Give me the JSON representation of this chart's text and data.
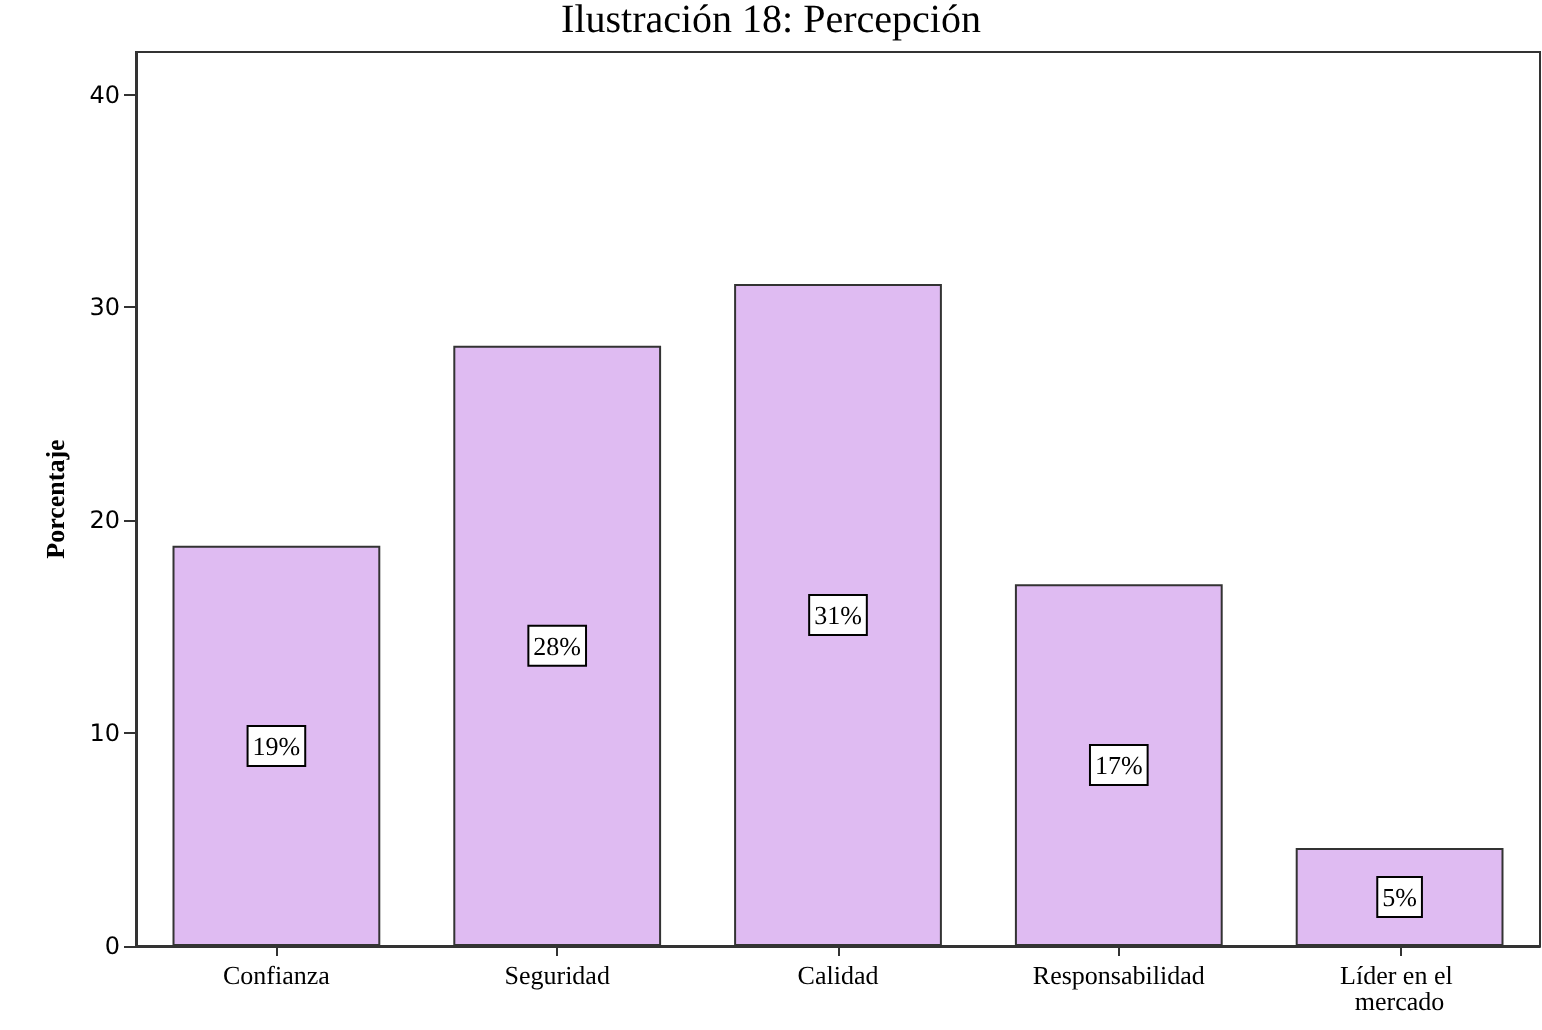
{
  "chart_data": {
    "type": "bar",
    "title": "Ilustración 18: Percepción",
    "ylabel": "Porcentaje",
    "categories": [
      "Confianza",
      "Seguridad",
      "Calidad",
      "Responsabilidad",
      "Líder en el mercado"
    ],
    "values": [
      18.8,
      28.2,
      31.1,
      17.0,
      4.6
    ],
    "value_labels": [
      "19%",
      "28%",
      "31%",
      "17%",
      "5%"
    ],
    "color": "#dfbbf2",
    "ylim": [
      0,
      42
    ],
    "yticks": [
      0,
      10,
      20,
      30,
      40
    ],
    "grid": false
  }
}
